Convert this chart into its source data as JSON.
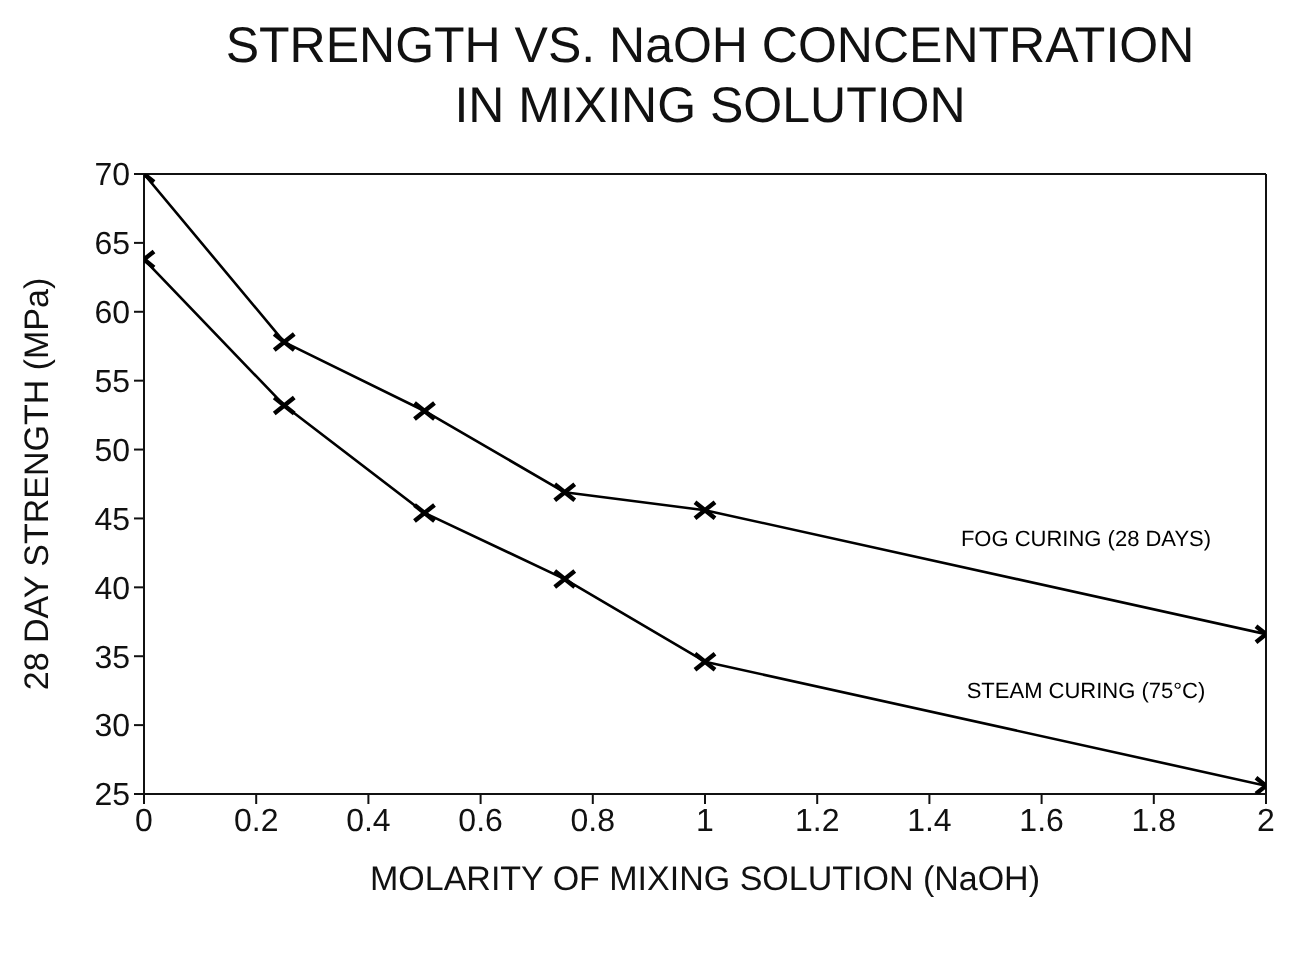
{
  "chart_data": {
    "type": "line",
    "title": "STRENGTH VS. NaOH CONCENTRATION\nIN MIXING SOLUTION",
    "xlabel": "MOLARITY OF MIXING SOLUTION (NaOH)",
    "ylabel": "28 DAY STRENGTH (MPa)",
    "x": [
      0,
      0.25,
      0.5,
      0.75,
      1,
      2
    ],
    "series": [
      {
        "name": "FOG CURING (28 DAYS)",
        "color": "#000000",
        "values": [
          70,
          57.8,
          52.8,
          46.9,
          45.6,
          36.6
        ]
      },
      {
        "name": "STEAM CURING (75°C)",
        "color": "#000000",
        "values": [
          63.8,
          53.2,
          45.4,
          40.6,
          34.6,
          25.6
        ]
      }
    ],
    "xlim": [
      0,
      2
    ],
    "xticks": [
      0,
      0.2,
      0.4,
      0.6,
      0.8,
      1,
      1.2,
      1.4,
      1.6,
      1.8,
      2
    ],
    "ylim": [
      25,
      70
    ],
    "yticks": [
      25,
      30,
      35,
      40,
      45,
      50,
      55,
      60,
      65,
      70
    ],
    "grid": false,
    "legend": false,
    "marker": "cross",
    "line_style": "solid"
  }
}
